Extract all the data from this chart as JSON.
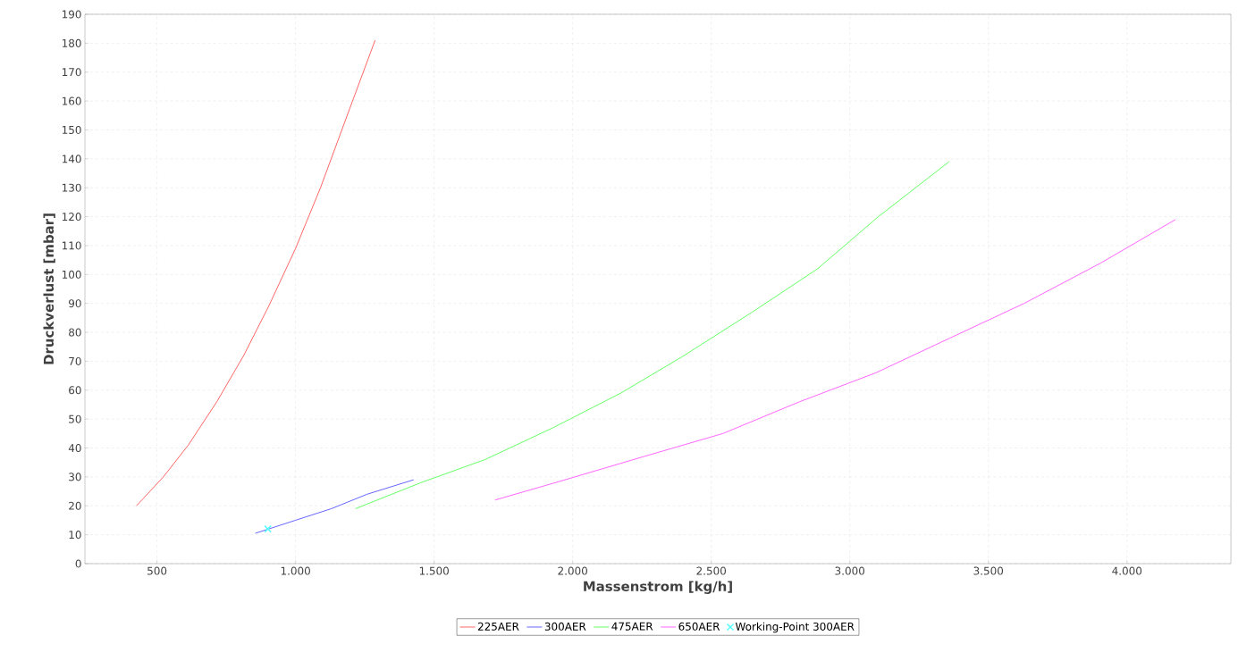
{
  "chart_data": {
    "type": "line",
    "xlabel": "Massenstrom [kg/h]",
    "ylabel": "Druckverlust [mbar]",
    "xlim": [
      240,
      4375
    ],
    "ylim": [
      0,
      190
    ],
    "xticks": [
      500,
      {
        "value": 1000,
        "label": "1.000"
      },
      {
        "value": 1500,
        "label": "1.500"
      },
      {
        "value": 2000,
        "label": "2.000"
      },
      {
        "value": 2500,
        "label": "2.500"
      },
      {
        "value": 3000,
        "label": "3.000"
      },
      {
        "value": 3500,
        "label": "3.500"
      },
      {
        "value": 4000,
        "label": "4.000"
      }
    ],
    "yticks": [
      0,
      10,
      20,
      30,
      40,
      50,
      60,
      70,
      80,
      90,
      100,
      110,
      120,
      130,
      140,
      150,
      160,
      170,
      180,
      190
    ],
    "grid": true,
    "legend": "bottom",
    "marker": "none",
    "line_style": "solid",
    "series": [
      {
        "name": "225AER",
        "color": "#ff6666",
        "x": [
          426,
          523,
          613,
          716,
          813,
          903,
          1000,
          1090,
          1194,
          1287
        ],
        "values": [
          20,
          30,
          41,
          56,
          72,
          89,
          109,
          130,
          157,
          181
        ]
      },
      {
        "name": "300AER",
        "color": "#6666ff",
        "x": [
          855,
          1000,
          1129,
          1258,
          1426
        ],
        "values": [
          10.5,
          15,
          19,
          24,
          29
        ]
      },
      {
        "name": "475AER",
        "color": "#66ff66",
        "x": [
          1216,
          1452,
          1684,
          1929,
          2174,
          2394,
          2648,
          2884,
          3103,
          3358
        ],
        "values": [
          19,
          28,
          36,
          47,
          59,
          71.5,
          87,
          102,
          120,
          139
        ]
      },
      {
        "name": "650AER",
        "color": "#ff66ff",
        "x": [
          1720,
          1955,
          2255,
          2542,
          2819,
          3094,
          3361,
          3629,
          3906,
          4175
        ],
        "values": [
          22,
          28.5,
          37,
          45,
          56,
          66,
          78,
          90,
          104,
          119
        ]
      },
      {
        "name": "Working-Point 300AER",
        "type": "scatter",
        "marker": "cross",
        "color": "#55ffff",
        "x": [
          900
        ],
        "values": [
          12
        ]
      }
    ]
  }
}
